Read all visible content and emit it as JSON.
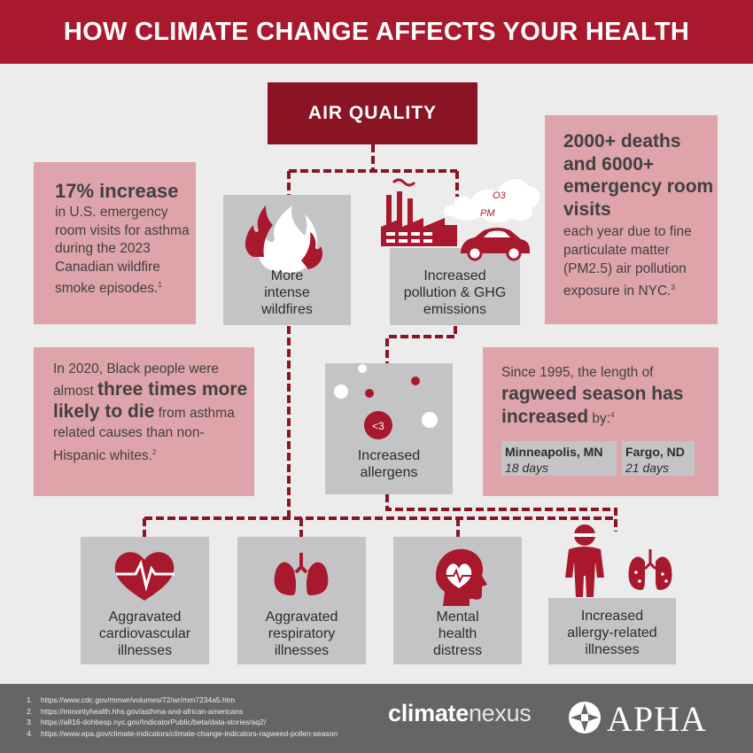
{
  "header": {
    "title": "HOW CLIMATE CHANGE AFFECTS YOUR HEALTH"
  },
  "air_quality": "AIR QUALITY",
  "causes": [
    {
      "label": "More intense wildfires"
    },
    {
      "label": "Increased pollution & GHG emissions",
      "cloud_labels": [
        "O3",
        "PM"
      ]
    },
    {
      "label": "Increased allergens"
    }
  ],
  "facts": {
    "asthma_wildfire": {
      "headline": "17% increase",
      "body": "in U.S. emergency room visits for asthma during the 2023 Canadian wildfire smoke episodes.",
      "ref": "1"
    },
    "nyc_pm": {
      "headline": "2000+ deaths and 6000+ emergency room visits",
      "body": "each year due to fine particulate matter (PM2.5) air pollution exposure in NYC.",
      "ref": "3"
    },
    "black_asthma": {
      "pre": "In 2020, Black people were almost",
      "highlight": "three times more likely to die",
      "post": "from asthma related causes than non-Hispanic whites.",
      "ref": "2"
    },
    "ragweed": {
      "pre": "Since 1995, the length of",
      "highlight": "ragweed season has increased",
      "post": "by:",
      "ref": "4",
      "cities": [
        {
          "name": "Minneapolis, MN",
          "days": "18 days"
        },
        {
          "name": "Fargo, ND",
          "days": "21 days"
        }
      ]
    }
  },
  "outcomes": [
    {
      "label": "Aggravated cardiovascular illnesses",
      "icon": "heart-icon"
    },
    {
      "label": "Aggravated respiratory illnesses",
      "icon": "lungs-icon"
    },
    {
      "label": "Mental health distress",
      "icon": "head-heart-icon"
    },
    {
      "label": "Increased allergy-related illnesses",
      "icon": "person-lungs-icon"
    }
  ],
  "footer": {
    "refs": [
      {
        "n": "1.",
        "url": "https://www.cdc.gov/mmwr/volumes/72/wr/mm7234a5.htm"
      },
      {
        "n": "2.",
        "url": "https://minorityhealth.hhs.gov/asthma-and-african-americans"
      },
      {
        "n": "3.",
        "url": "https://a816-dohbesp.nyc.gov/IndicatorPublic/beta/data-stories/aq2/"
      },
      {
        "n": "4.",
        "url": "https://www.epa.gov/climate-indicators/climate-change-indicators-ragweed-pollen-season"
      }
    ],
    "logo_climate": "climate",
    "logo_nexus": "nexus",
    "logo_apha": "APHA"
  },
  "colors": {
    "header": "#a9192d",
    "air_quality": "#8a1424",
    "pink_box": "#dea4aa",
    "gray_box": "#c4c4c6",
    "icon_red": "#a9192d",
    "footer": "#656567"
  }
}
